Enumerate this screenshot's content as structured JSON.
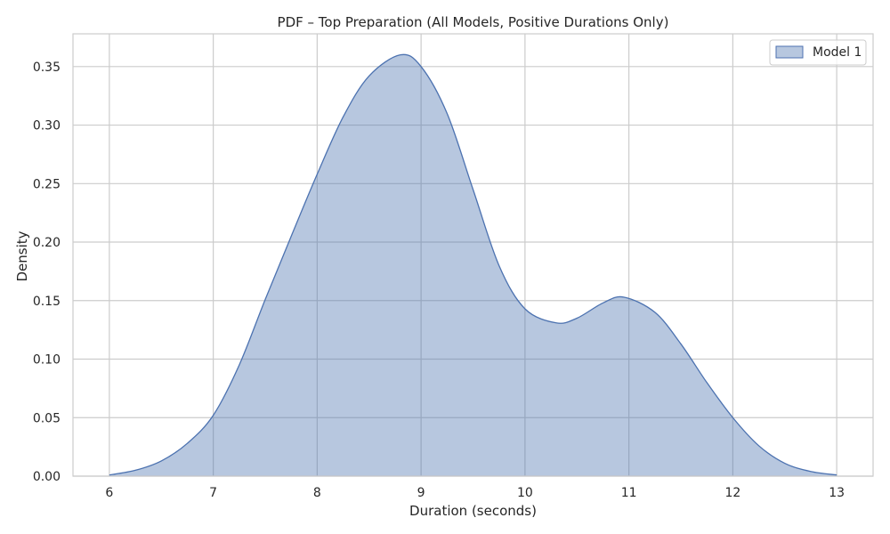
{
  "chart_data": {
    "type": "area",
    "title": "PDF – Top Preparation (All Models, Positive Durations Only)",
    "xlabel": "Duration (seconds)",
    "ylabel": "Density",
    "xlim": [
      5.65,
      13.35
    ],
    "ylim": [
      0,
      0.378
    ],
    "xticks": [
      6,
      7,
      8,
      9,
      10,
      11,
      12,
      13
    ],
    "xtick_labels": [
      "6",
      "7",
      "8",
      "9",
      "10",
      "11",
      "12",
      "13"
    ],
    "yticks": [
      0,
      0.05,
      0.1,
      0.15,
      0.2,
      0.25,
      0.3,
      0.35
    ],
    "ytick_labels": [
      "0.00",
      "0.05",
      "0.10",
      "0.15",
      "0.20",
      "0.25",
      "0.30",
      "0.35"
    ],
    "grid": true,
    "legend_position": "top-right",
    "series": [
      {
        "name": "Model 1",
        "color": "#4c72b0",
        "fill_opacity": 0.4,
        "x": [
          6.0,
          6.25,
          6.5,
          6.75,
          7.0,
          7.25,
          7.5,
          7.75,
          8.0,
          8.25,
          8.5,
          8.8,
          9.0,
          9.25,
          9.5,
          9.75,
          10.0,
          10.3,
          10.5,
          10.75,
          10.95,
          11.25,
          11.5,
          11.75,
          12.0,
          12.25,
          12.5,
          12.75,
          13.0
        ],
        "y": [
          0.001,
          0.005,
          0.013,
          0.028,
          0.052,
          0.095,
          0.151,
          0.205,
          0.258,
          0.307,
          0.342,
          0.36,
          0.35,
          0.31,
          0.245,
          0.18,
          0.143,
          0.131,
          0.135,
          0.148,
          0.153,
          0.14,
          0.113,
          0.08,
          0.05,
          0.026,
          0.011,
          0.004,
          0.001
        ]
      }
    ]
  }
}
